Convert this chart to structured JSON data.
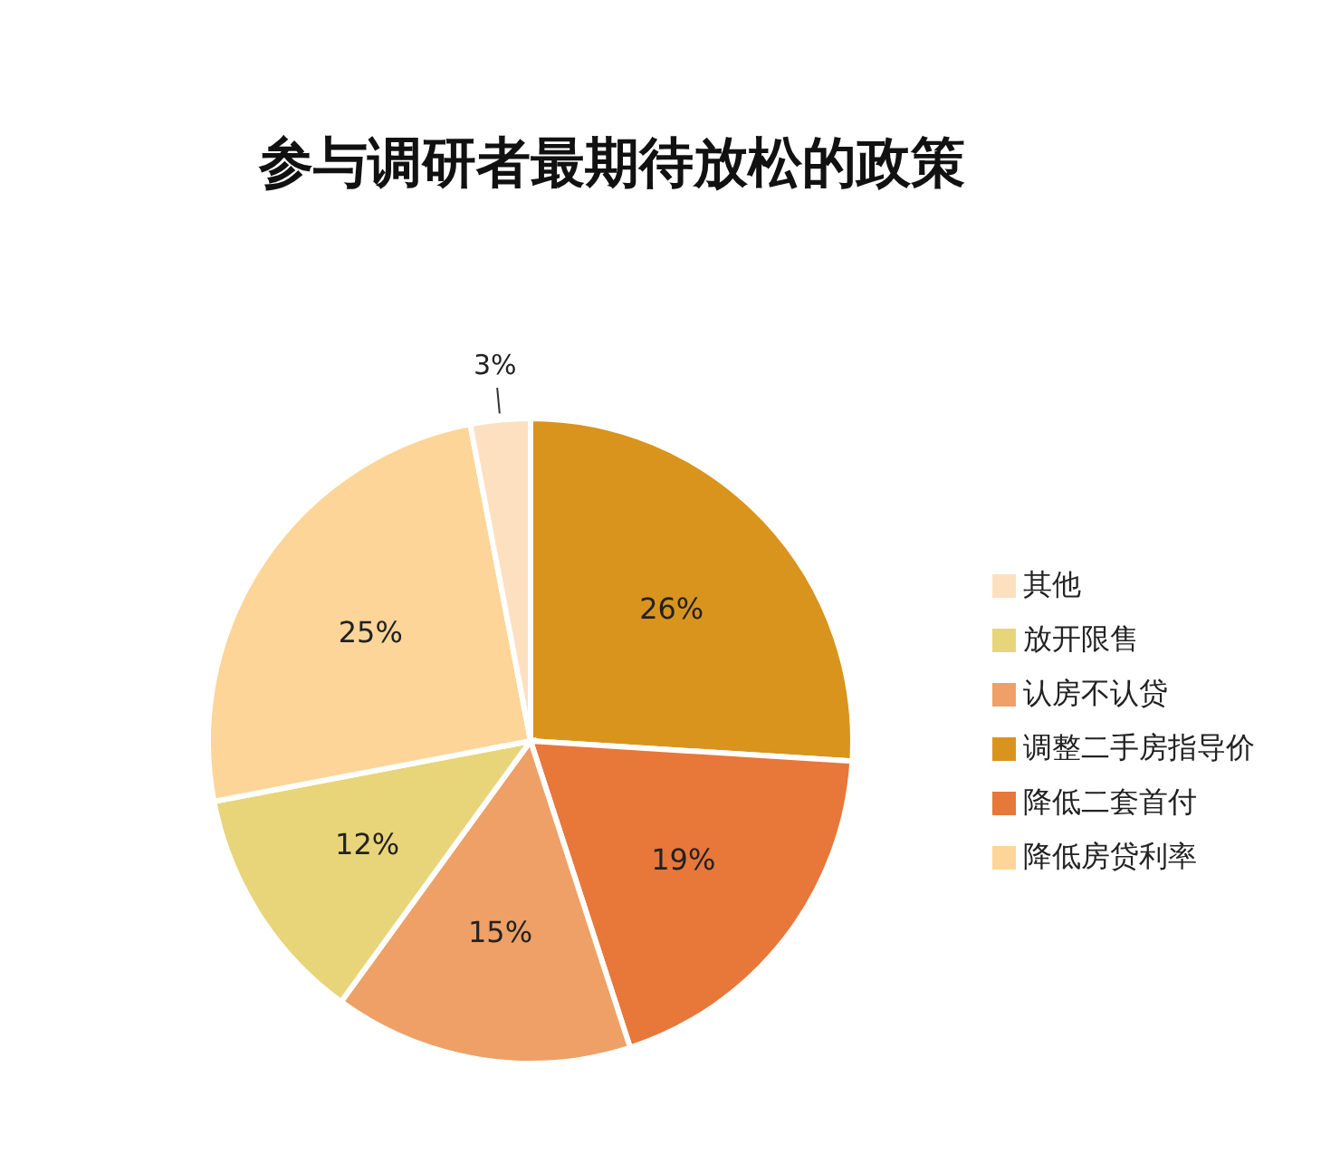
{
  "chart_data": {
    "type": "pie",
    "title": "参与调研者最期待放松的政策",
    "categories": [
      "调整二手房指导价",
      "降低二套首付",
      "认房不认贷",
      "放开限售",
      "降低房贷利率",
      "其他"
    ],
    "values": [
      26,
      19,
      15,
      12,
      25,
      3
    ],
    "value_labels": [
      "26%",
      "19%",
      "15%",
      "12%",
      "25%",
      "3%"
    ],
    "colors": [
      "#d9941e",
      "#e8773a",
      "#eea066",
      "#e8d57a",
      "#fdd598",
      "#fde0c0"
    ],
    "legend": "right"
  }
}
